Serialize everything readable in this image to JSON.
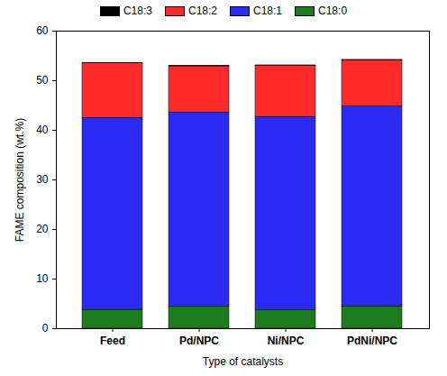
{
  "chart_data": {
    "type": "bar",
    "stacked": true,
    "legend": "top",
    "x_label": "Type of catalysts",
    "y_label": "FAME composition (wt.%)",
    "categories": [
      "Feed",
      "Pd/NPC",
      "Ni/NPC",
      "PdNi/NPC"
    ],
    "series": [
      {
        "name": "C18:0",
        "color": "#1b7d1b",
        "values": [
          3.8,
          4.4,
          3.7,
          4.5
        ]
      },
      {
        "name": "C18:1",
        "color": "#2b2bf5",
        "values": [
          38.7,
          39.2,
          39.0,
          40.3
        ]
      },
      {
        "name": "C18:2",
        "color": "#ff2a2a",
        "values": [
          11.0,
          9.3,
          10.3,
          9.3
        ]
      },
      {
        "name": "C18:3",
        "color": "#000000",
        "values": [
          0.1,
          0.1,
          0.1,
          0.1
        ]
      }
    ],
    "ylim": [
      0,
      60
    ],
    "yticks": [
      0,
      10,
      20,
      30,
      40,
      50,
      60
    ]
  }
}
